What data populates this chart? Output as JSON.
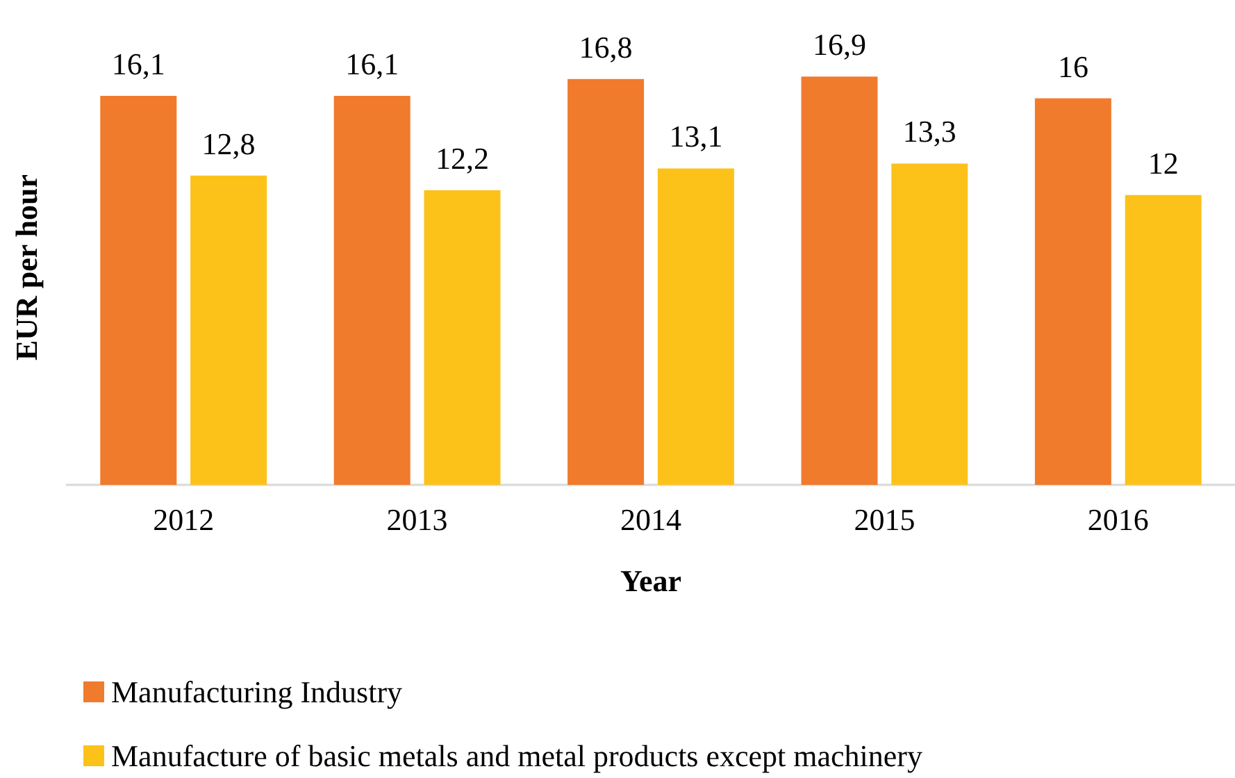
{
  "chart_data": {
    "type": "bar",
    "xlabel": "Year",
    "ylabel": "EUR per hour",
    "categories": [
      "2012",
      "2013",
      "2014",
      "2015",
      "2016"
    ],
    "series": [
      {
        "name": "Manufacturing Industry",
        "color": "#f07b2c",
        "values": [
          16.1,
          16.1,
          16.8,
          16.9,
          16
        ],
        "value_labels": [
          "16,1",
          "16,1",
          "16,8",
          "16,9",
          "16"
        ]
      },
      {
        "name": "Manufacture of basic metals and metal products except machinery",
        "color": "#fcc21a",
        "values": [
          12.8,
          12.2,
          13.1,
          13.3,
          12
        ],
        "value_labels": [
          "12,8",
          "12,2",
          "13,1",
          "13,3",
          "12"
        ]
      }
    ],
    "grid": false,
    "legend": "bottom",
    "tick_labels": "x"
  }
}
